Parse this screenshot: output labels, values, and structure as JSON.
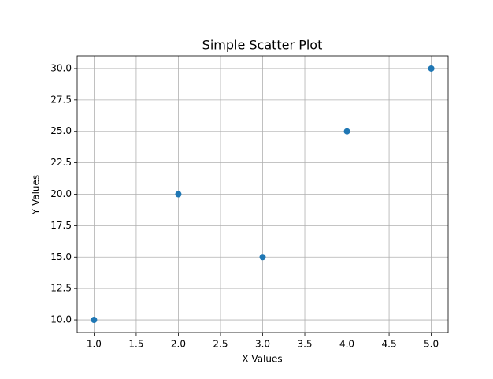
{
  "chart_data": {
    "type": "scatter",
    "title": "Simple Scatter Plot",
    "x_label": "X Values",
    "y_label": "Y Values",
    "x": [
      1,
      2,
      3,
      4,
      5
    ],
    "y": [
      10,
      20,
      15,
      25,
      30
    ],
    "color": "#1f77b4",
    "xlim": [
      0.8,
      5.2
    ],
    "ylim": [
      9,
      31
    ],
    "xticks": [
      {
        "value": 1,
        "label": "1.0"
      },
      {
        "value": 1.5,
        "label": "1.5"
      },
      {
        "value": 2,
        "label": "2.0"
      },
      {
        "value": 2.5,
        "label": "2.5"
      },
      {
        "value": 3,
        "label": "3.0"
      },
      {
        "value": 3.5,
        "label": "3.5"
      },
      {
        "value": 4,
        "label": "4.0"
      },
      {
        "value": 4.5,
        "label": "4.5"
      },
      {
        "value": 5,
        "label": "5.0"
      }
    ],
    "yticks": [
      {
        "value": 10,
        "label": "10.0"
      },
      {
        "value": 12.5,
        "label": "12.5"
      },
      {
        "value": 15,
        "label": "15.0"
      },
      {
        "value": 17.5,
        "label": "17.5"
      },
      {
        "value": 20,
        "label": "20.0"
      },
      {
        "value": 22.5,
        "label": "22.5"
      },
      {
        "value": 25,
        "label": "25.0"
      },
      {
        "value": 27.5,
        "label": "27.5"
      },
      {
        "value": 30,
        "label": "30.0"
      }
    ],
    "grid": true
  }
}
